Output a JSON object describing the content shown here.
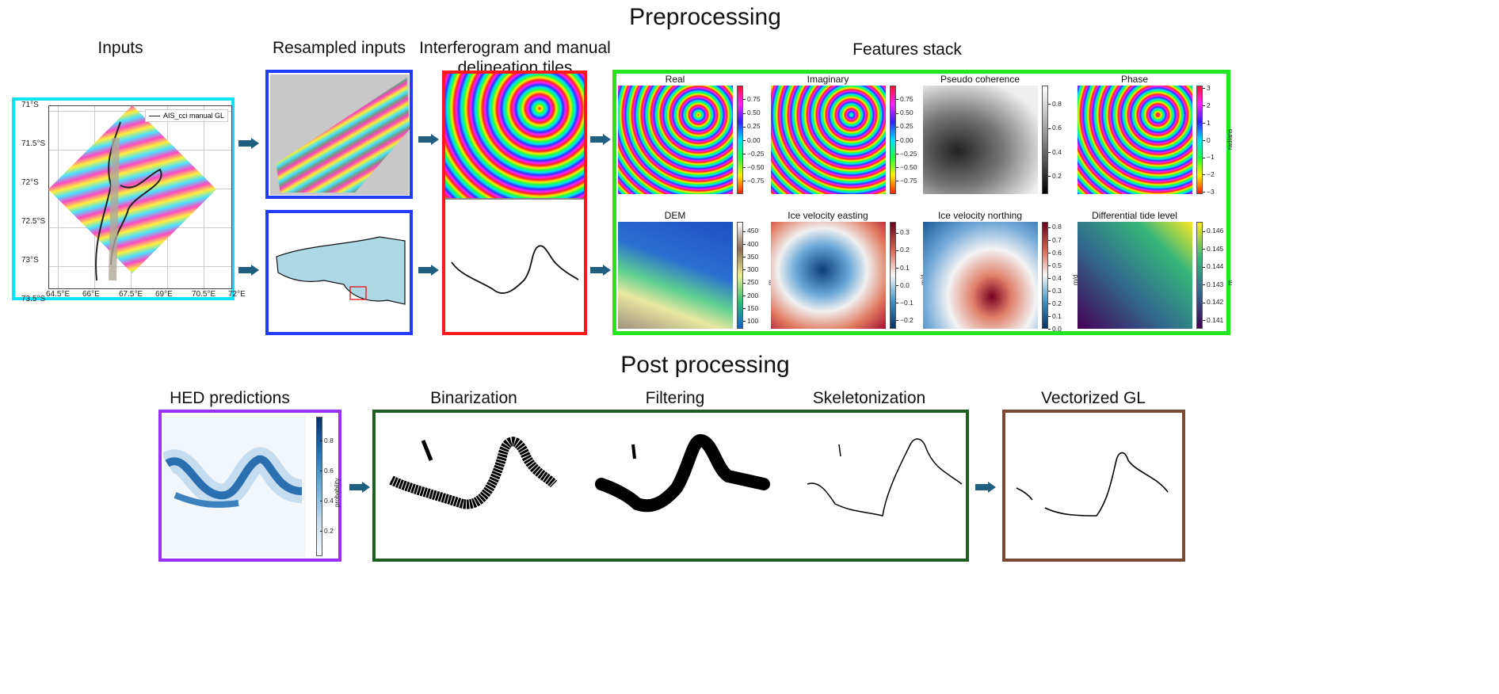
{
  "titles": {
    "preprocessing": "Preprocessing",
    "postprocessing": "Post processing"
  },
  "sections": {
    "inputs": "Inputs",
    "resampled": "Resampled inputs",
    "tiles_line1": "Interferogram and manual",
    "tiles_line2": "delineation tiles",
    "features": "Features stack"
  },
  "inputs_map": {
    "legend": "AIS_cci manual GL",
    "lat_labels": [
      "71°S",
      "71.5°S",
      "72°S",
      "72.5°S",
      "73°S",
      "73.5°S"
    ],
    "lon_labels": [
      "64.5°E",
      "66°E",
      "67.5°E",
      "69°E",
      "70.5°E",
      "72°E"
    ]
  },
  "features": [
    {
      "title": "Real",
      "cmap": "hsv",
      "label": "",
      "min": -1,
      "max": 1,
      "ticks": [
        "0.75",
        "0.50",
        "0.25",
        "0.00",
        "−0.25",
        "−0.50",
        "−0.75"
      ],
      "tickvals": [
        0.75,
        0.5,
        0.25,
        0,
        -0.25,
        -0.5,
        -0.75
      ]
    },
    {
      "title": "Imaginary",
      "cmap": "hsv",
      "label": "",
      "min": -1,
      "max": 1,
      "ticks": [
        "0.75",
        "0.50",
        "0.25",
        "0.00",
        "−0.25",
        "−0.50",
        "−0.75"
      ],
      "tickvals": [
        0.75,
        0.5,
        0.25,
        0,
        -0.25,
        -0.5,
        -0.75
      ]
    },
    {
      "title": "Pseudo coherence",
      "cmap": "gray",
      "label": "",
      "min": 0.05,
      "max": 0.95,
      "ticks": [
        "0.8",
        "0.6",
        "0.4",
        "0.2"
      ],
      "tickvals": [
        0.8,
        0.6,
        0.4,
        0.2
      ]
    },
    {
      "title": "Phase",
      "cmap": "hsv",
      "label": "radians",
      "min": -3.14,
      "max": 3.14,
      "ticks": [
        "3",
        "2",
        "1",
        "0",
        "−1",
        "−2",
        "−3"
      ],
      "tickvals": [
        3,
        2,
        1,
        0,
        -1,
        -2,
        -3
      ]
    },
    {
      "title": "DEM",
      "cmap": "terrain",
      "label": "m",
      "min": 70,
      "max": 485,
      "ticks": [
        "450",
        "400",
        "350",
        "300",
        "250",
        "200",
        "150",
        "100"
      ],
      "tickvals": [
        450,
        400,
        350,
        300,
        250,
        200,
        150,
        100
      ]
    },
    {
      "title": "Ice velocity easting",
      "cmap": "RdBu",
      "label": "m/d",
      "min": -0.25,
      "max": 0.36,
      "ticks": [
        "0.3",
        "0.2",
        "0.1",
        "0.0",
        "−0.1",
        "−0.2"
      ],
      "tickvals": [
        0.3,
        0.2,
        0.1,
        0,
        -0.1,
        -0.2
      ]
    },
    {
      "title": "Ice velocity northing",
      "cmap": "RdBu",
      "label": "m/d",
      "min": 0,
      "max": 0.84,
      "ticks": [
        "0.8",
        "0.7",
        "0.6",
        "0.5",
        "0.4",
        "0.3",
        "0.2",
        "0.1",
        "0.0"
      ],
      "tickvals": [
        0.8,
        0.7,
        0.6,
        0.5,
        0.4,
        0.3,
        0.2,
        0.1,
        0
      ]
    },
    {
      "title": "Differential tide level",
      "cmap": "viridis",
      "label": "m",
      "min": 0.1405,
      "max": 0.1465,
      "ticks": [
        "0.146",
        "0.145",
        "0.144",
        "0.143",
        "0.142",
        "0.141"
      ],
      "tickvals": [
        0.146,
        0.145,
        0.144,
        0.143,
        0.142,
        0.141
      ]
    }
  ],
  "post": {
    "hed": {
      "title": "HED predictions",
      "label": "probability",
      "min": 0.05,
      "max": 0.98,
      "ticks": [
        "0.8",
        "0.6",
        "0.4",
        "0.2"
      ],
      "tickvals": [
        0.8,
        0.6,
        0.4,
        0.2
      ]
    },
    "binarization": "Binarization",
    "filtering": "Filtering",
    "skeletonization": "Skeletonization",
    "vectorized": "Vectorized GL"
  },
  "colors": {
    "inputs_box": "#00e5ff",
    "resampled_box": "#1f3cff",
    "tiles_box": "#ff1a1a",
    "features_box": "#22e622",
    "hed_box": "#9b30ff",
    "post_box": "#1e5e20",
    "vector_box": "#7b4a32",
    "arrow": "#1f6080"
  }
}
